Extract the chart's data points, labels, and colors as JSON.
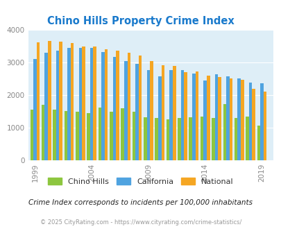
{
  "title": "Chino Hills Property Crime Index",
  "title_color": "#1a7acc",
  "years": [
    1999,
    2000,
    2001,
    2002,
    2003,
    2004,
    2005,
    2006,
    2007,
    2008,
    2009,
    2010,
    2011,
    2012,
    2013,
    2014,
    2015,
    2016,
    2017,
    2018,
    2019
  ],
  "chino_hills": [
    1550,
    1700,
    1550,
    1510,
    1480,
    1450,
    1610,
    1480,
    1600,
    1490,
    1310,
    1290,
    1260,
    1290,
    1320,
    1350,
    1290,
    1720,
    1300,
    1350,
    1060
  ],
  "california": [
    3100,
    3300,
    3350,
    3450,
    3440,
    3440,
    3320,
    3160,
    3040,
    2950,
    2760,
    2580,
    2760,
    2760,
    2660,
    2450,
    2640,
    2570,
    2500,
    2390,
    2360
  ],
  "national": [
    3620,
    3660,
    3640,
    3590,
    3490,
    3490,
    3400,
    3350,
    3290,
    3220,
    3050,
    2920,
    2890,
    2710,
    2720,
    2600,
    2560,
    2500,
    2460,
    2180,
    2100
  ],
  "bar_width": 0.28,
  "color_chino": "#8dc63f",
  "color_california": "#4fa3e0",
  "color_national": "#f5a623",
  "bg_color": "#deeef7",
  "ylim": [
    0,
    4000
  ],
  "yticks": [
    0,
    1000,
    2000,
    3000,
    4000
  ],
  "xtick_labels": [
    "1999",
    "2004",
    "2009",
    "2014",
    "2019"
  ],
  "xtick_positions": [
    1999,
    2004,
    2009,
    2014,
    2019
  ],
  "subtitle": "Crime Index corresponds to incidents per 100,000 inhabitants",
  "footer": "© 2025 CityRating.com - https://www.cityrating.com/crime-statistics/",
  "subtitle_color": "#222222",
  "footer_color": "#999999",
  "grid_color": "#ffffff",
  "legend_labels": [
    "Chino Hills",
    "California",
    "National"
  ]
}
